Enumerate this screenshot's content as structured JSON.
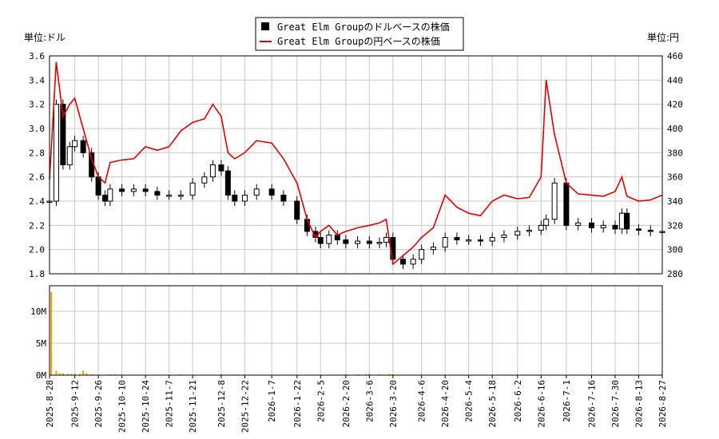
{
  "legend": {
    "usd_label": "Great Elm Groupのドルベースの株価",
    "jpy_label": "Great Elm Groupの円ベースの株価"
  },
  "units": {
    "left": "単位:ドル",
    "right": "単位:円"
  },
  "colors": {
    "usd_candle": "#000000",
    "jpy_line": "#dd0000",
    "volume_bar": "#f0a000",
    "grid": "#c8c8c8"
  },
  "chart_data": [
    {
      "type": "line",
      "title": "",
      "y_left": {
        "label": "単位:ドル",
        "min": 1.8,
        "max": 3.6,
        "ticks": [
          "1.8",
          "2.0",
          "2.2",
          "2.4",
          "2.6",
          "2.8",
          "3.0",
          "3.2",
          "3.4",
          "3.6"
        ]
      },
      "y_right": {
        "label": "単位:円",
        "min": 280,
        "max": 460,
        "ticks": [
          "280",
          "300",
          "320",
          "340",
          "360",
          "380",
          "400",
          "420",
          "440",
          "460"
        ]
      },
      "x_ticks": [
        "2025-8-28",
        "2025-9-12",
        "2025-9-26",
        "2025-10-10",
        "2025-10-24",
        "2025-11-7",
        "2025-11-21",
        "2025-12-8",
        "2025-12-22",
        "2026-1-7",
        "2026-1-22",
        "2026-2-5",
        "2026-2-20",
        "2026-3-6",
        "2026-3-20",
        "2026-4-6",
        "2026-4-20",
        "2026-5-4",
        "2026-5-18",
        "2026-6-2",
        "2026-6-16",
        "2026-7-1",
        "2026-7-16",
        "2026-7-30",
        "2026-8-13",
        "2026-8-27"
      ],
      "grid": true,
      "legend_position": "top-center",
      "series": [
        {
          "name": "Great Elm Groupのドルベースの株価",
          "kind": "candlestick-close",
          "x": [
            "2025-8-28",
            "2025-9-1",
            "2025-9-5",
            "2025-9-9",
            "2025-9-12",
            "2025-9-17",
            "2025-9-22",
            "2025-9-26",
            "2025-9-30",
            "2025-10-3",
            "2025-10-10",
            "2025-10-17",
            "2025-10-24",
            "2025-10-31",
            "2025-11-7",
            "2025-11-14",
            "2025-11-21",
            "2025-11-28",
            "2025-12-3",
            "2025-12-8",
            "2025-12-12",
            "2025-12-16",
            "2025-12-22",
            "2025-12-29",
            "2026-1-7",
            "2026-1-14",
            "2026-1-22",
            "2026-1-28",
            "2026-2-2",
            "2026-2-5",
            "2026-2-10",
            "2026-2-15",
            "2026-2-20",
            "2026-2-27",
            "2026-3-6",
            "2026-3-12",
            "2026-3-16",
            "2026-3-20",
            "2026-3-26",
            "2026-4-1",
            "2026-4-6",
            "2026-4-13",
            "2026-4-20",
            "2026-4-27",
            "2026-5-4",
            "2026-5-11",
            "2026-5-18",
            "2026-5-25",
            "2026-6-2",
            "2026-6-9",
            "2026-6-16",
            "2026-6-19",
            "2026-6-24",
            "2026-7-1",
            "2026-7-8",
            "2026-7-16",
            "2026-7-23",
            "2026-7-30",
            "2026-8-3",
            "2026-8-6",
            "2026-8-13",
            "2026-8-20",
            "2026-8-27"
          ],
          "values": [
            2.4,
            3.2,
            2.7,
            2.85,
            2.9,
            2.8,
            2.6,
            2.45,
            2.4,
            2.5,
            2.48,
            2.5,
            2.48,
            2.45,
            2.45,
            2.45,
            2.55,
            2.6,
            2.7,
            2.65,
            2.45,
            2.4,
            2.45,
            2.5,
            2.45,
            2.4,
            2.25,
            2.15,
            2.1,
            2.05,
            2.12,
            2.08,
            2.05,
            2.07,
            2.05,
            2.06,
            2.1,
            1.92,
            1.88,
            1.92,
            2.0,
            2.02,
            2.1,
            2.08,
            2.08,
            2.07,
            2.1,
            2.12,
            2.15,
            2.16,
            2.2,
            2.25,
            2.55,
            2.2,
            2.22,
            2.18,
            2.2,
            2.17,
            2.3,
            2.17,
            2.16,
            2.15,
            2.15
          ]
        },
        {
          "name": "Great Elm Groupの円ベースの株価",
          "kind": "line",
          "x": [
            "2025-8-28",
            "2025-9-1",
            "2025-9-5",
            "2025-9-9",
            "2025-9-12",
            "2025-9-17",
            "2025-9-22",
            "2025-9-26",
            "2025-9-30",
            "2025-10-3",
            "2025-10-10",
            "2025-10-17",
            "2025-10-24",
            "2025-10-31",
            "2025-11-7",
            "2025-11-14",
            "2025-11-21",
            "2025-11-28",
            "2025-12-3",
            "2025-12-8",
            "2025-12-12",
            "2025-12-16",
            "2025-12-22",
            "2025-12-29",
            "2026-1-7",
            "2026-1-14",
            "2026-1-22",
            "2026-1-28",
            "2026-2-2",
            "2026-2-5",
            "2026-2-10",
            "2026-2-15",
            "2026-2-20",
            "2026-2-27",
            "2026-3-6",
            "2026-3-12",
            "2026-3-16",
            "2026-3-20",
            "2026-3-26",
            "2026-4-1",
            "2026-4-6",
            "2026-4-13",
            "2026-4-20",
            "2026-4-27",
            "2026-5-4",
            "2026-5-11",
            "2026-5-18",
            "2026-5-25",
            "2026-6-2",
            "2026-6-9",
            "2026-6-16",
            "2026-6-19",
            "2026-6-24",
            "2026-7-1",
            "2026-7-8",
            "2026-7-16",
            "2026-7-23",
            "2026-7-30",
            "2026-8-3",
            "2026-8-6",
            "2026-8-13",
            "2026-8-20",
            "2026-8-27"
          ],
          "values": [
            358,
            455,
            410,
            420,
            425,
            400,
            375,
            360,
            355,
            372,
            374,
            375,
            385,
            382,
            385,
            398,
            405,
            408,
            420,
            410,
            380,
            375,
            380,
            390,
            388,
            375,
            355,
            325,
            310,
            315,
            320,
            312,
            315,
            318,
            320,
            322,
            325,
            288,
            295,
            302,
            310,
            318,
            345,
            335,
            330,
            328,
            340,
            345,
            342,
            343,
            360,
            440,
            395,
            355,
            346,
            345,
            344,
            348,
            360,
            344,
            340,
            341,
            345
          ]
        }
      ]
    },
    {
      "type": "bar",
      "title": "",
      "y_ticks": [
        "0M",
        "5M",
        "10M"
      ],
      "ylim": [
        0,
        14000000
      ],
      "x": [
        "2025-8-29",
        "2025-9-1",
        "2025-9-3",
        "2025-9-5",
        "2025-9-8",
        "2025-9-10",
        "2025-9-12",
        "2025-9-15",
        "2025-9-17",
        "2025-9-19",
        "2025-9-22",
        "2025-10-3",
        "2025-10-6",
        "2025-11-14",
        "2025-12-8",
        "2025-12-16",
        "2025-12-18",
        "2026-2-20",
        "2026-2-27",
        "2026-3-4",
        "2026-3-6",
        "2026-3-12",
        "2026-3-18",
        "2026-3-20"
      ],
      "values": [
        13000000,
        700000,
        300000,
        300000,
        200000,
        200000,
        200000,
        200000,
        700000,
        300000,
        200000,
        150000,
        150000,
        150000,
        150000,
        100000,
        100000,
        150000,
        120000,
        150000,
        200000,
        150000,
        200000,
        150000
      ]
    }
  ]
}
